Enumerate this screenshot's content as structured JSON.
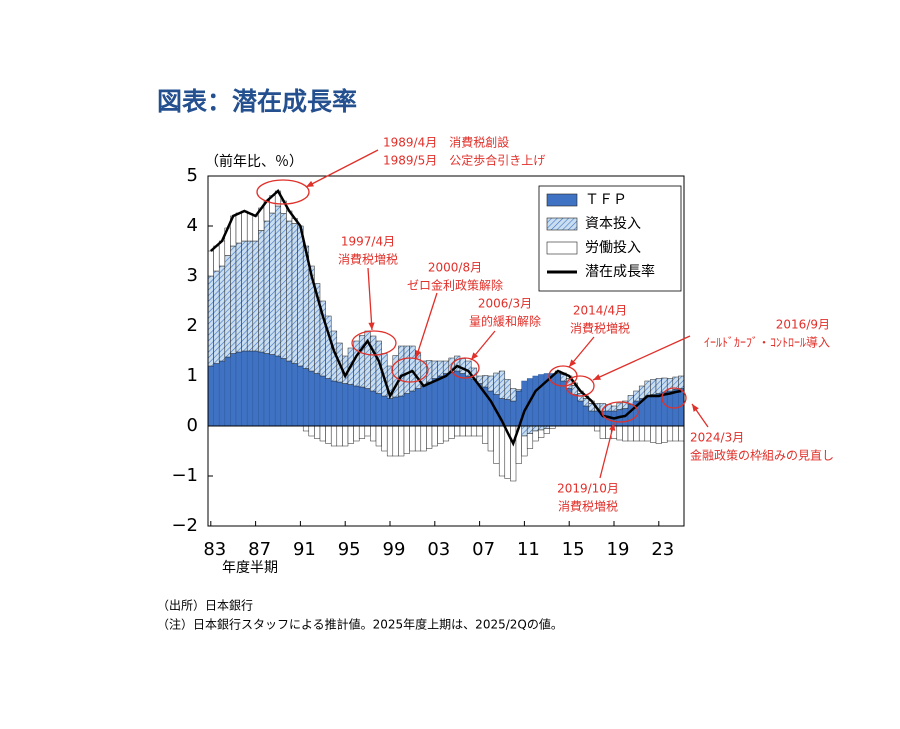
{
  "chart_data": {
    "type": "bar",
    "title": "図表：潜在成長率",
    "y_label": "（前年比、％）",
    "x_label": "年度半期",
    "notes": [
      "（出所）日本銀行",
      "（注）日本銀行スタッフによる推計値。2025年度上期は、2025/2Qの値。"
    ],
    "legend": "upper right",
    "ylim": [
      -2,
      5
    ],
    "yticks": [
      {
        "value": -2,
        "label": "−2"
      },
      {
        "value": -1,
        "label": "−1"
      },
      0,
      1,
      2,
      3,
      4,
      5
    ],
    "categories": [
      "83",
      null,
      null,
      null,
      null,
      null,
      null,
      null,
      "87",
      null,
      null,
      null,
      null,
      null,
      null,
      null,
      "91",
      null,
      null,
      null,
      null,
      null,
      null,
      null,
      "95",
      null,
      null,
      null,
      null,
      null,
      null,
      null,
      "99",
      null,
      null,
      null,
      null,
      null,
      null,
      null,
      "03",
      null,
      null,
      null,
      null,
      null,
      null,
      null,
      "07",
      null,
      null,
      null,
      null,
      null,
      null,
      null,
      "11",
      null,
      null,
      null,
      null,
      null,
      null,
      null,
      "15",
      null,
      null,
      null,
      null,
      null,
      null,
      null,
      "19",
      null,
      null,
      null,
      null,
      null,
      null,
      null,
      "23",
      null,
      null,
      null,
      null
    ],
    "series": [
      {
        "name": "ＴＦＰ",
        "color": "#3f72c2",
        "values": [
          1.2,
          1.25,
          1.3,
          1.38,
          1.45,
          1.48,
          1.5,
          1.5,
          1.5,
          1.48,
          1.45,
          1.43,
          1.4,
          1.35,
          1.3,
          1.25,
          1.2,
          1.15,
          1.1,
          1.05,
          1.0,
          0.95,
          0.9,
          0.88,
          0.85,
          0.83,
          0.8,
          0.78,
          0.75,
          0.7,
          0.65,
          0.6,
          0.55,
          0.58,
          0.6,
          0.65,
          0.7,
          0.75,
          0.8,
          0.88,
          0.95,
          1.0,
          1.05,
          1.08,
          1.1,
          1.05,
          1.0,
          0.93,
          0.85,
          0.78,
          0.7,
          0.63,
          0.55,
          0.53,
          0.5,
          0.7,
          0.9,
          0.95,
          1.0,
          1.03,
          1.05,
          1.05,
          1.05,
          0.9,
          0.75,
          0.63,
          0.5,
          0.4,
          0.3,
          0.3,
          0.3,
          0.3,
          0.3,
          0.33,
          0.35,
          0.43,
          0.5,
          0.55,
          0.6,
          0.63,
          0.65,
          0.68,
          0.7,
          0.73,
          0.75
        ]
      },
      {
        "name": "資本投入",
        "color": "#c9def0",
        "hatch": true,
        "values": [
          1.8,
          1.85,
          1.9,
          2.03,
          2.15,
          2.18,
          2.2,
          2.2,
          2.2,
          2.43,
          2.65,
          2.83,
          3.0,
          2.9,
          2.8,
          2.8,
          2.8,
          2.45,
          2.1,
          1.8,
          1.5,
          1.25,
          1.0,
          0.78,
          0.55,
          0.73,
          0.9,
          1.03,
          1.15,
          1.1,
          1.05,
          0.85,
          0.65,
          0.83,
          1.0,
          0.95,
          0.9,
          0.7,
          0.5,
          0.43,
          0.35,
          0.3,
          0.25,
          0.28,
          0.3,
          0.3,
          0.3,
          0.23,
          0.15,
          0.23,
          0.3,
          0.43,
          0.55,
          0.4,
          0.25,
          0.03,
          -0.2,
          -0.15,
          -0.1,
          -0.08,
          -0.05,
          0,
          0.05,
          0.13,
          0.2,
          0.18,
          0.15,
          0.15,
          0.15,
          0.15,
          0.15,
          0.13,
          0.1,
          0.13,
          0.15,
          0.18,
          0.2,
          0.25,
          0.3,
          0.3,
          0.3,
          0.28,
          0.25,
          0.25,
          0.25
        ]
      },
      {
        "name": "労働投入",
        "color": "#ffffff",
        "values": [
          0.5,
          0.5,
          0.5,
          0.55,
          0.6,
          0.6,
          0.6,
          0.55,
          0.5,
          0.45,
          0.4,
          0.35,
          0.3,
          0.25,
          0.2,
          0.1,
          0,
          -0.1,
          -0.2,
          -0.25,
          -0.3,
          -0.35,
          -0.4,
          -0.4,
          -0.4,
          -0.35,
          -0.3,
          -0.25,
          -0.2,
          -0.3,
          -0.4,
          -0.5,
          -0.6,
          -0.6,
          -0.6,
          -0.55,
          -0.5,
          -0.5,
          -0.5,
          -0.45,
          -0.4,
          -0.35,
          -0.3,
          -0.25,
          -0.2,
          -0.2,
          -0.2,
          -0.2,
          -0.2,
          -0.35,
          -0.5,
          -0.75,
          -1.0,
          -1.05,
          -1.1,
          -0.75,
          -0.4,
          -0.3,
          -0.2,
          -0.15,
          -0.1,
          -0.05,
          0,
          0.03,
          0.05,
          0.05,
          0.05,
          0.05,
          0.05,
          -0.1,
          -0.25,
          -0.25,
          -0.25,
          -0.28,
          -0.3,
          -0.3,
          -0.3,
          -0.3,
          -0.3,
          -0.33,
          -0.35,
          -0.33,
          -0.3,
          -0.3,
          -0.3
        ]
      },
      {
        "name": "潜在成長率",
        "type": "line",
        "color": "#000000",
        "values": [
          3.5,
          3.6,
          3.7,
          3.95,
          4.2,
          4.25,
          4.3,
          4.25,
          4.2,
          4.35,
          4.5,
          4.6,
          4.7,
          4.5,
          4.3,
          4.15,
          4.0,
          3.5,
          3.0,
          2.6,
          2.2,
          1.85,
          1.5,
          1.25,
          1.0,
          1.2,
          1.4,
          1.55,
          1.7,
          1.5,
          1.3,
          0.95,
          0.6,
          0.8,
          1.0,
          1.05,
          1.1,
          0.95,
          0.8,
          0.85,
          0.9,
          0.95,
          1.0,
          1.1,
          1.2,
          1.15,
          1.1,
          0.95,
          0.8,
          0.65,
          0.5,
          0.3,
          0.1,
          -0.13,
          -0.35,
          -0.03,
          0.3,
          0.5,
          0.7,
          0.8,
          0.9,
          1.0,
          1.1,
          1.05,
          1.0,
          0.85,
          0.7,
          0.6,
          0.5,
          0.35,
          0.2,
          0.18,
          0.15,
          0.18,
          0.2,
          0.3,
          0.4,
          0.5,
          0.6,
          0.6,
          0.6,
          0.63,
          0.65,
          0.68,
          0.7
        ]
      }
    ],
    "annotations": [
      {
        "lines": [
          "1989/4月　消費税創設",
          "1989/5月　公定歩合引き上げ"
        ],
        "color": "#e0302a"
      },
      {
        "lines": [
          "1997/4月",
          "消費税増税"
        ],
        "color": "#e0302a"
      },
      {
        "lines": [
          "2000/8月",
          "ゼロ金利政策解除"
        ],
        "color": "#e0302a"
      },
      {
        "lines": [
          "2006/3月",
          "量的緩和解除"
        ],
        "color": "#e0302a"
      },
      {
        "lines": [
          "2014/4月",
          "消費税増税"
        ],
        "color": "#e0302a"
      },
      {
        "lines": [
          "2016/9月",
          "ｲｰﾙﾄﾞｶｰﾌﾞ・ｺﾝﾄﾛｰﾙ導入"
        ],
        "color": "#e0302a"
      },
      {
        "lines": [
          "2019/10月",
          "消費税増税"
        ],
        "color": "#e0302a"
      },
      {
        "lines": [
          "2024/3月",
          "金融政策の枠組みの見直し"
        ],
        "color": "#e0302a"
      }
    ]
  }
}
